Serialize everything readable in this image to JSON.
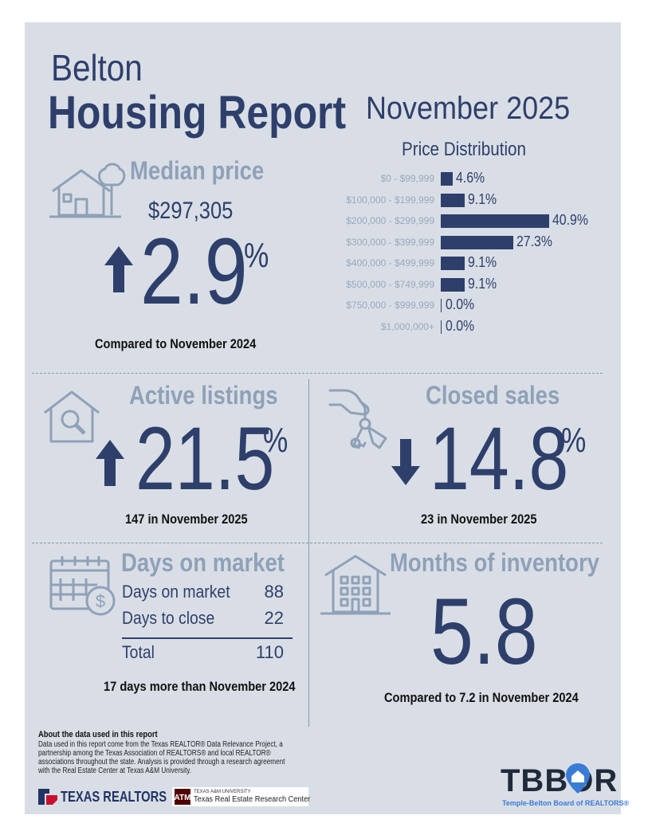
{
  "header": {
    "city": "Belton",
    "title": "Housing Report",
    "period": "November 2025"
  },
  "median_price": {
    "label": "Median price",
    "value": "$297,305",
    "direction": "up",
    "change_number": "2.9",
    "change_unit": "%",
    "comparison": "Compared to November 2024"
  },
  "price_distribution": {
    "title": "Price Distribution",
    "rows": [
      {
        "range": "$0 - $99,999",
        "percent": 4.6,
        "label": "4.6%"
      },
      {
        "range": "$100,000 - $199,999",
        "percent": 9.1,
        "label": "9.1%"
      },
      {
        "range": "$200,000 - $299,999",
        "percent": 40.9,
        "label": "40.9%"
      },
      {
        "range": "$300,000 - $399,999",
        "percent": 27.3,
        "label": "27.3%"
      },
      {
        "range": "$400,000 - $499,999",
        "percent": 9.1,
        "label": "9.1%"
      },
      {
        "range": "$500,000 - $749,999",
        "percent": 9.1,
        "label": "9.1%"
      },
      {
        "range": "$750,000 - $999,999",
        "percent": 0.0,
        "label": "0.0%"
      },
      {
        "range": "$1,000,000+",
        "percent": 0.0,
        "label": "0.0%"
      }
    ]
  },
  "active_listings": {
    "label": "Active listings",
    "direction": "up",
    "change_number": "21.5",
    "change_unit": "%",
    "caption": "147 in November 2025"
  },
  "closed_sales": {
    "label": "Closed sales",
    "direction": "down",
    "change_number": "14.8",
    "change_unit": "%",
    "caption": "23 in November 2025"
  },
  "days_on_market": {
    "label": "Days on market",
    "rows": [
      {
        "name": "Days on market",
        "value": "88"
      },
      {
        "name": "Days to close",
        "value": "22"
      }
    ],
    "total_name": "Total",
    "total_value": "110",
    "caption": "17 days more than November 2024"
  },
  "months_inventory": {
    "label": "Months of inventory",
    "value": "5.8",
    "caption": "Compared to 7.2 in November 2024"
  },
  "footer": {
    "about_title": "About the data used in this report",
    "about_lines": [
      "Data used in this report come from the Texas REALTOR® Data Relevance Project, a",
      "partnership among the Texas Association of REALTORS® and local REALTOR®",
      "associations throughout the state. Analysis is provided through a research agreement",
      "with the Real Estate Center at Texas A&M University."
    ],
    "texas_realtors": "TEXAS REALTORS",
    "tamu_small": "TEXAS A&M UNIVERSITY",
    "tamu_center": "Texas Real Estate Research Center",
    "tbbor": "TBBOR",
    "tbbor_tagline": "Temple-Belton Board of REALTORS®"
  },
  "colors": {
    "panel": "#d9dee6",
    "navy": "#2e3f6b",
    "muted": "#8fa1b8",
    "tbbor_blue": "#3a7bd5"
  }
}
